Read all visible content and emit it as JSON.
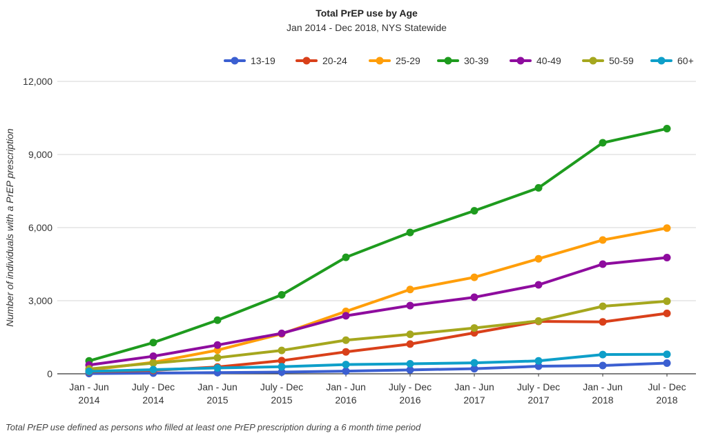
{
  "chart_data": {
    "type": "line",
    "title": "Total PrEP use by Age",
    "subtitle": "Jan 2014 - Dec 2018, NYS Statewide",
    "ylabel": "Number of individuals with a PrEP prescription",
    "xlabel": "",
    "footnote": "Total PrEP use defined as persons who filled at least one PrEP prescription during a 6 month time period",
    "ylim": [
      0,
      12000
    ],
    "yticks": [
      "0",
      "3,000",
      "6,000",
      "9,000",
      "12,000"
    ],
    "ytick_values": [
      0,
      3000,
      6000,
      9000,
      12000
    ],
    "grid": true,
    "legend_position": "top-right",
    "categories": [
      [
        "Jan - Jun",
        "2014"
      ],
      [
        "July - Dec",
        "2014"
      ],
      [
        "Jan - Jun",
        "2015"
      ],
      [
        "July - Dec",
        "2015"
      ],
      [
        "Jan - Jun",
        "2016"
      ],
      [
        "July - Dec",
        "2016"
      ],
      [
        "Jan - Jun",
        "2017"
      ],
      [
        "July - Dec",
        "2017"
      ],
      [
        "Jan - Jun",
        "2018"
      ],
      [
        "Jul - Dec",
        "2018"
      ]
    ],
    "series": [
      {
        "name": "13-19",
        "color": "#3b5fd1",
        "values": [
          10,
          30,
          50,
          70,
          110,
          160,
          210,
          310,
          340,
          440
        ]
      },
      {
        "name": "20-24",
        "color": "#d9401a",
        "values": [
          80,
          140,
          280,
          540,
          900,
          1220,
          1680,
          2150,
          2130,
          2480
        ]
      },
      {
        "name": "25-29",
        "color": "#ff9e0a",
        "values": [
          150,
          470,
          970,
          1640,
          2560,
          3460,
          3960,
          4720,
          5490,
          5980
        ]
      },
      {
        "name": "30-39",
        "color": "#1e9b1e",
        "values": [
          530,
          1280,
          2200,
          3240,
          4780,
          5800,
          6690,
          7630,
          9480,
          10060
        ]
      },
      {
        "name": "40-49",
        "color": "#8e0c9e",
        "values": [
          360,
          720,
          1180,
          1660,
          2380,
          2800,
          3140,
          3650,
          4500,
          4770
        ]
      },
      {
        "name": "50-59",
        "color": "#a5a71e",
        "values": [
          200,
          440,
          660,
          960,
          1380,
          1620,
          1880,
          2170,
          2770,
          2980
        ]
      },
      {
        "name": "60+",
        "color": "#0e9fc9",
        "values": [
          100,
          170,
          240,
          290,
          380,
          410,
          450,
          530,
          790,
          800
        ]
      }
    ]
  }
}
